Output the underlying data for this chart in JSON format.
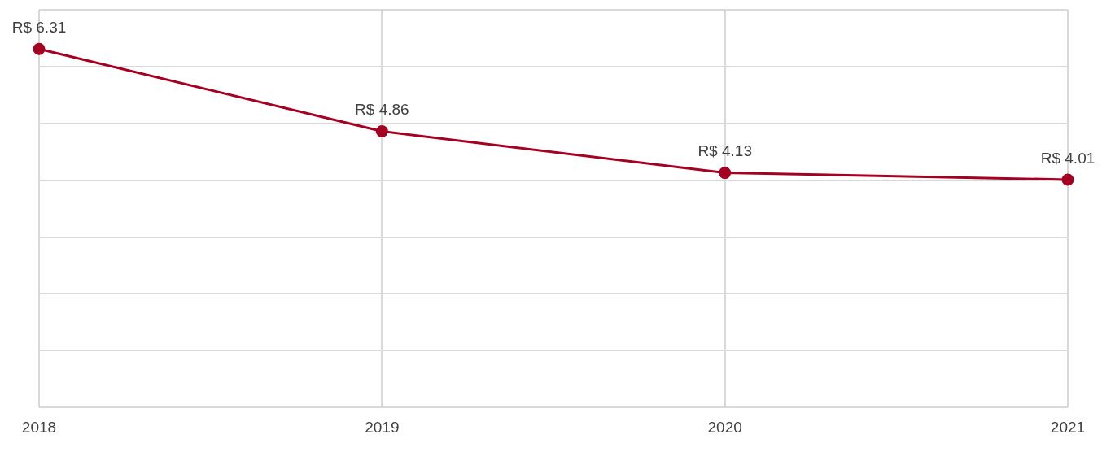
{
  "chart_data": {
    "type": "line",
    "categories": [
      "2018",
      "2019",
      "2020",
      "2021"
    ],
    "series": [
      {
        "color": "#a50021",
        "values": [
          6.31,
          4.86,
          4.13,
          4.01
        ],
        "value_labels": [
          "R$ 6.31",
          "R$ 4.86",
          "R$ 4.13",
          "R$ 4.01"
        ]
      }
    ],
    "ylim": [
      0,
      7
    ],
    "yticks": [
      {
        "value": 0,
        "label": null
      },
      {
        "value": 1,
        "label": null
      },
      {
        "value": 2,
        "label": null
      },
      {
        "value": 3,
        "label": null
      },
      {
        "value": 4,
        "label": null
      },
      {
        "value": 5,
        "label": null
      },
      {
        "value": 6,
        "label": null
      },
      {
        "value": 7,
        "label": null
      }
    ],
    "grid": true,
    "tick_labels": "x",
    "marker": "circle",
    "line_style": "solid"
  }
}
